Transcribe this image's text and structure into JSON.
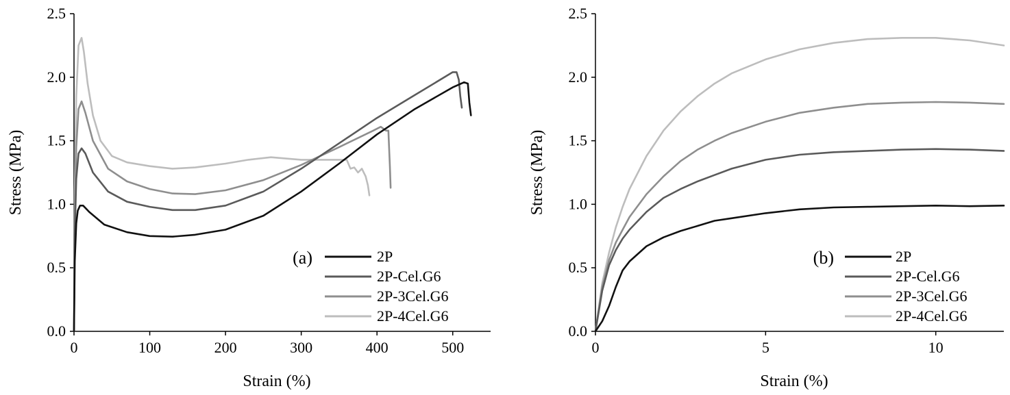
{
  "chart_data": [
    {
      "type": "line",
      "panel_label": "(a)",
      "xlabel": "Strain (%)",
      "ylabel": "Stress (MPa)",
      "xlim": [
        0,
        550
      ],
      "ylim": [
        0,
        2.5
      ],
      "xticks": [
        0,
        100,
        200,
        300,
        400,
        500
      ],
      "yticks": [
        0.0,
        0.5,
        1.0,
        1.5,
        2.0,
        2.5
      ],
      "ytick_labels": [
        "0.0",
        "0.5",
        "1.0",
        "1.5",
        "2.0",
        "2.5"
      ],
      "legend_position": "bottom-right",
      "series": [
        {
          "name": "2P",
          "color": "#111111",
          "x": [
            0,
            1,
            3,
            5,
            8,
            12,
            20,
            40,
            70,
            100,
            130,
            160,
            200,
            250,
            300,
            350,
            400,
            450,
            500,
            515,
            520,
            522,
            524
          ],
          "y": [
            0,
            0.55,
            0.85,
            0.95,
            0.99,
            0.99,
            0.94,
            0.84,
            0.78,
            0.75,
            0.745,
            0.76,
            0.8,
            0.91,
            1.1,
            1.32,
            1.55,
            1.75,
            1.92,
            1.96,
            1.95,
            1.8,
            1.7
          ]
        },
        {
          "name": "2P-Cel.G6",
          "color": "#5a5a5a",
          "x": [
            0,
            1,
            3,
            6,
            10,
            15,
            25,
            45,
            70,
            100,
            130,
            160,
            200,
            250,
            300,
            350,
            400,
            450,
            500,
            505,
            508,
            510,
            512
          ],
          "y": [
            0,
            0.75,
            1.2,
            1.4,
            1.44,
            1.4,
            1.25,
            1.1,
            1.02,
            0.98,
            0.955,
            0.955,
            0.99,
            1.1,
            1.28,
            1.48,
            1.68,
            1.86,
            2.04,
            2.04,
            1.98,
            1.85,
            1.76
          ]
        },
        {
          "name": "2P-3Cel.G6",
          "color": "#8e8e8e",
          "x": [
            0,
            1,
            3,
            6,
            10,
            15,
            25,
            45,
            70,
            100,
            130,
            160,
            200,
            250,
            300,
            350,
            395,
            405,
            412,
            415,
            417,
            418
          ],
          "y": [
            0,
            0.9,
            1.45,
            1.75,
            1.81,
            1.72,
            1.5,
            1.28,
            1.18,
            1.12,
            1.085,
            1.08,
            1.11,
            1.19,
            1.31,
            1.45,
            1.58,
            1.61,
            1.58,
            1.58,
            1.3,
            1.13
          ]
        },
        {
          "name": "2P-4Cel.G6",
          "color": "#bdbdbd",
          "x": [
            0,
            1,
            3,
            6,
            10,
            13,
            18,
            25,
            35,
            50,
            70,
            100,
            130,
            160,
            200,
            230,
            260,
            300,
            330,
            360,
            365,
            370,
            375,
            380,
            385,
            388,
            390
          ],
          "y": [
            0,
            1.1,
            1.85,
            2.25,
            2.31,
            2.2,
            1.95,
            1.7,
            1.5,
            1.38,
            1.33,
            1.3,
            1.28,
            1.29,
            1.32,
            1.35,
            1.37,
            1.35,
            1.35,
            1.35,
            1.28,
            1.29,
            1.25,
            1.28,
            1.22,
            1.15,
            1.07
          ]
        }
      ]
    },
    {
      "type": "line",
      "panel_label": "(b)",
      "xlabel": "Strain (%)",
      "ylabel": "Stress (MPa)",
      "xlim": [
        0,
        12
      ],
      "ylim": [
        0,
        2.5
      ],
      "xticks": [
        0,
        5,
        10
      ],
      "yticks": [
        0.0,
        0.5,
        1.0,
        1.5,
        2.0,
        2.5
      ],
      "ytick_labels": [
        "0.0",
        "0.5",
        "1.0",
        "1.5",
        "2.0",
        "2.5"
      ],
      "legend_position": "bottom-right",
      "series": [
        {
          "name": "2P",
          "color": "#111111",
          "x": [
            0,
            0.2,
            0.4,
            0.6,
            0.8,
            1.0,
            1.5,
            2.0,
            2.5,
            3.0,
            3.5,
            4.0,
            5.0,
            6.0,
            7.0,
            8.0,
            9.0,
            10.0,
            11.0,
            12.0
          ],
          "y": [
            0,
            0.08,
            0.2,
            0.35,
            0.48,
            0.55,
            0.67,
            0.74,
            0.79,
            0.83,
            0.87,
            0.89,
            0.93,
            0.96,
            0.975,
            0.98,
            0.985,
            0.99,
            0.985,
            0.99
          ]
        },
        {
          "name": "2P-Cel.G6",
          "color": "#5a5a5a",
          "x": [
            0,
            0.2,
            0.4,
            0.6,
            0.8,
            1.0,
            1.5,
            2.0,
            2.5,
            3.0,
            3.5,
            4.0,
            5.0,
            6.0,
            7.0,
            8.0,
            9.0,
            10.0,
            11.0,
            12.0
          ],
          "y": [
            0,
            0.32,
            0.52,
            0.64,
            0.73,
            0.8,
            0.94,
            1.05,
            1.12,
            1.18,
            1.23,
            1.28,
            1.35,
            1.39,
            1.41,
            1.42,
            1.43,
            1.435,
            1.43,
            1.42
          ]
        },
        {
          "name": "2P-3Cel.G6",
          "color": "#8e8e8e",
          "x": [
            0,
            0.2,
            0.4,
            0.6,
            0.8,
            1.0,
            1.5,
            2.0,
            2.5,
            3.0,
            3.5,
            4.0,
            5.0,
            6.0,
            7.0,
            8.0,
            9.0,
            10.0,
            11.0,
            12.0
          ],
          "y": [
            0,
            0.35,
            0.56,
            0.7,
            0.8,
            0.9,
            1.08,
            1.22,
            1.34,
            1.43,
            1.5,
            1.56,
            1.65,
            1.72,
            1.76,
            1.79,
            1.8,
            1.805,
            1.8,
            1.79
          ]
        },
        {
          "name": "2P-4Cel.G6",
          "color": "#bdbdbd",
          "x": [
            0,
            0.2,
            0.4,
            0.6,
            0.8,
            1.0,
            1.5,
            2.0,
            2.5,
            3.0,
            3.5,
            4.0,
            5.0,
            6.0,
            7.0,
            8.0,
            9.0,
            10.0,
            11.0,
            12.0
          ],
          "y": [
            0,
            0.38,
            0.62,
            0.82,
            0.98,
            1.12,
            1.38,
            1.58,
            1.73,
            1.85,
            1.95,
            2.03,
            2.14,
            2.22,
            2.27,
            2.3,
            2.31,
            2.31,
            2.29,
            2.25
          ]
        }
      ]
    }
  ]
}
